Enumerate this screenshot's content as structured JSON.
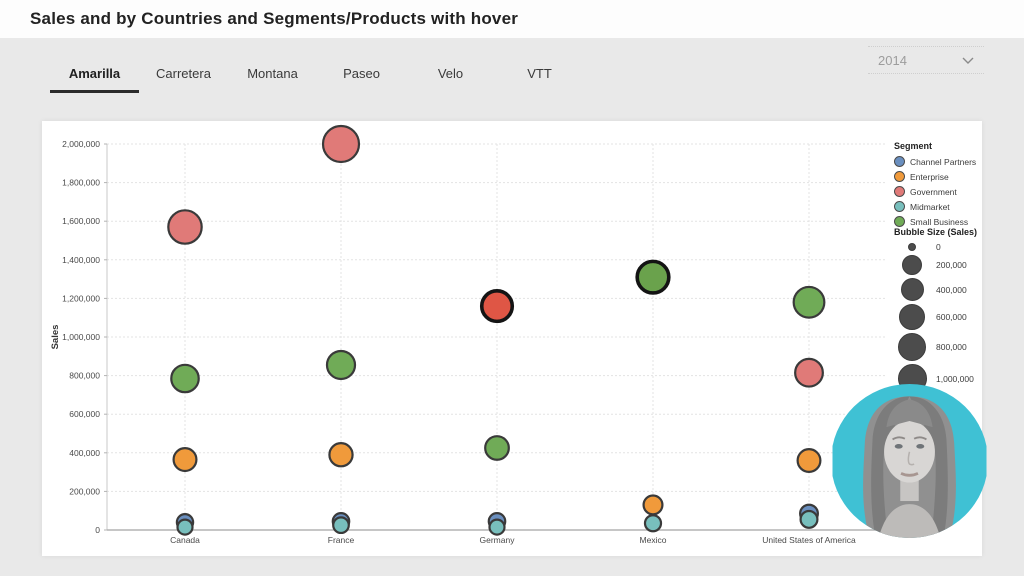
{
  "header": {
    "title": "Sales and by Countries and Segments/Products with hover"
  },
  "tabs": {
    "items": [
      {
        "label": "Amarilla",
        "active": true
      },
      {
        "label": "Carretera",
        "active": false
      },
      {
        "label": "Montana",
        "active": false
      },
      {
        "label": "Paseo",
        "active": false
      },
      {
        "label": "Velo",
        "active": false
      },
      {
        "label": "VTT",
        "active": false
      }
    ]
  },
  "year_filter": {
    "value": "2014",
    "icon": "chevron-down-icon"
  },
  "chart_data": {
    "type": "scatter",
    "ylabel": "Sales",
    "ylim": [
      0,
      2000000
    ],
    "grid": true,
    "legend_position": "right",
    "ytick_values": [
      0,
      200000,
      400000,
      600000,
      800000,
      1000000,
      1200000,
      1400000,
      1600000,
      1800000,
      2000000
    ],
    "ytick_labels": [
      "0",
      "200,000",
      "400,000",
      "600,000",
      "800,000",
      "1,000,000",
      "1,200,000",
      "1,400,000",
      "1,600,000",
      "1,800,000",
      "2,000,000"
    ],
    "categories": [
      "Canada",
      "France",
      "Germany",
      "Mexico",
      "United States of America"
    ],
    "series": [
      {
        "name": "Channel Partners",
        "color": "#6a8fbf",
        "values": [
          40000,
          45000,
          45000,
          null,
          85000
        ]
      },
      {
        "name": "Enterprise",
        "color": "#f09a3b",
        "values": [
          365000,
          390000,
          null,
          130000,
          360000
        ]
      },
      {
        "name": "Government",
        "color": "#e07a78",
        "values": [
          1570000,
          2000000,
          1160000,
          null,
          815000
        ]
      },
      {
        "name": "Midmarket",
        "color": "#78bfbd",
        "values": [
          15000,
          25000,
          15000,
          35000,
          55000
        ]
      },
      {
        "name": "Small Business",
        "color": "#70ab57",
        "values": [
          785000,
          855000,
          425000,
          1310000,
          1180000
        ]
      }
    ],
    "draw_order": [
      "Government",
      "Small Business",
      "Enterprise",
      "Channel Partners",
      "Midmarket"
    ],
    "highlights": [
      {
        "series": "Government",
        "category": "Germany",
        "fill": "#df5645"
      },
      {
        "series": "Small Business",
        "category": "Mexico",
        "fill": "#6aa24c"
      }
    ]
  },
  "segment_legend": {
    "title": "Segment"
  },
  "bubble_size_legend": {
    "title": "Bubble Size (Sales)",
    "entries": [
      {
        "value": 0,
        "label": "0"
      },
      {
        "value": 200000,
        "label": "200,000"
      },
      {
        "value": 400000,
        "label": "400,000"
      },
      {
        "value": 600000,
        "label": "600,000"
      },
      {
        "value": 800000,
        "label": "800,000"
      },
      {
        "value": 1000000,
        "label": "1,000,000"
      }
    ]
  },
  "webcam": {
    "background": "#3fc1d4",
    "description": "grayscale presenter portrait"
  },
  "colors": {
    "accent_cyan": "#3fc1d4",
    "size_bubble_gray": "#4c4c4c",
    "active_tab_underline": "#2b2b2b"
  }
}
